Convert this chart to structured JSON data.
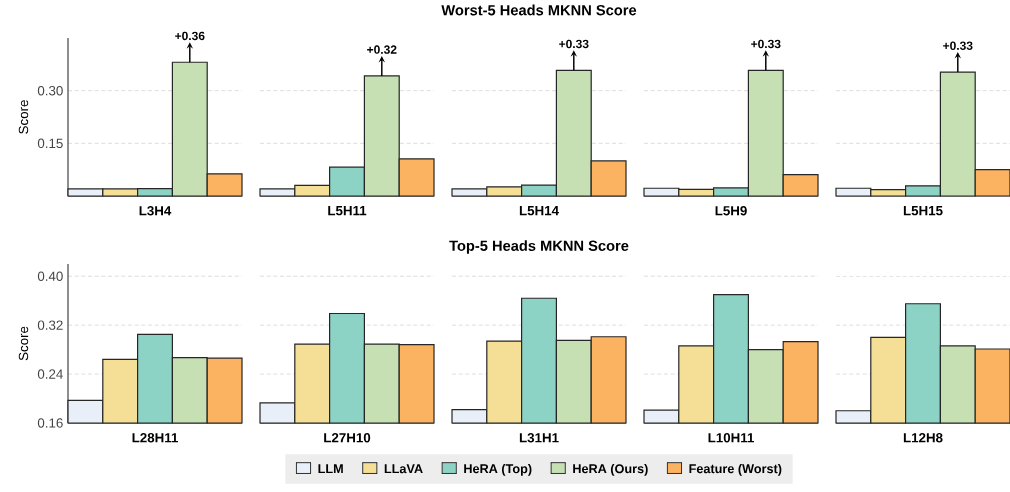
{
  "chart_data": [
    {
      "type": "bar",
      "title": "Worst-5 Heads MKNN Score",
      "ylabel": "Score",
      "categories": [
        "L3H4",
        "L5H11",
        "L5H14",
        "L5H9",
        "L5H15"
      ],
      "series": [
        {
          "color": "#e8eff8",
          "values": [
            0.02,
            0.02,
            0.02,
            0.022,
            0.022
          ]
        },
        {
          "color": "#f5df96",
          "values": [
            0.02,
            0.03,
            0.026,
            0.019,
            0.018
          ]
        },
        {
          "color": "#8dd3c5",
          "values": [
            0.021,
            0.082,
            0.031,
            0.023,
            0.029
          ]
        },
        {
          "color": "#c6e0b4",
          "values": [
            0.381,
            0.342,
            0.358,
            0.358,
            0.353
          ]
        },
        {
          "color": "#fbb362",
          "values": [
            0.063,
            0.106,
            0.1,
            0.061,
            0.075
          ]
        }
      ],
      "ylim": [
        0,
        0.45
      ],
      "yticks": [
        0.15,
        {
          "value": 0.3,
          "label": "0.30"
        }
      ],
      "grid": "y",
      "annotations": [
        "+0.36",
        "+0.32",
        "+0.33",
        "+0.33",
        "+0.33"
      ]
    },
    {
      "type": "bar",
      "title": "Top-5 Heads MKNN Score",
      "ylabel": "Score",
      "categories": [
        "L28H11",
        "L27H10",
        "L31H1",
        "L10H11",
        "L12H8"
      ],
      "series": [
        {
          "name": "LLM",
          "color": "#e8eff8",
          "values": [
            0.197,
            0.193,
            0.182,
            0.181,
            0.18
          ]
        },
        {
          "name": "LLaVA",
          "color": "#f5df96",
          "values": [
            0.264,
            0.289,
            0.294,
            0.286,
            0.3
          ]
        },
        {
          "name": "HeRA (Top)",
          "color": "#8dd3c5",
          "values": [
            0.305,
            0.339,
            0.364,
            0.37,
            0.355
          ]
        },
        {
          "name": "HeRA (Ours)",
          "color": "#c6e0b4",
          "values": [
            0.267,
            0.289,
            0.295,
            0.28,
            0.286
          ]
        },
        {
          "name": "Feature (Worst)",
          "color": "#fbb362",
          "values": [
            0.266,
            0.288,
            0.301,
            0.293,
            0.281
          ]
        }
      ],
      "ylim": [
        0.16,
        0.42
      ],
      "yticks": [
        0.16,
        0.24,
        0.32,
        {
          "value": 0.4,
          "label": "0.40"
        }
      ],
      "grid": "y",
      "legend": "bottom"
    }
  ]
}
